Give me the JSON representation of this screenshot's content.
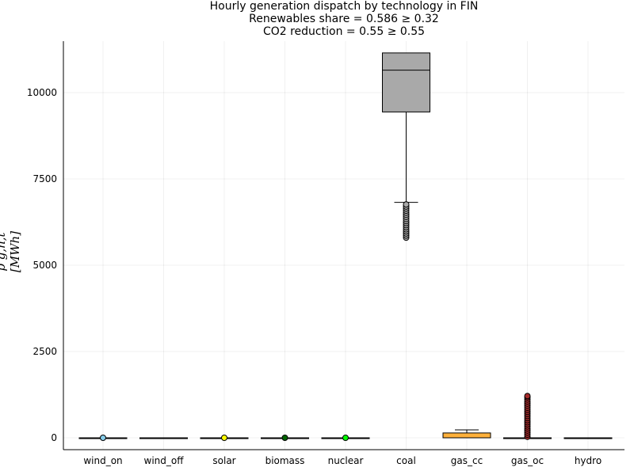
{
  "chart_data": {
    "type": "box",
    "title": "Hourly generation dispatch by technology in FIN",
    "subtitle_lines": [
      "Renewables share = 0.586 ≥ 0.32",
      "CO2 reduction = 0.55 ≥ 0.55"
    ],
    "ylabel": "p_{g,n,t} [MWh]",
    "ylabel_display": "p g,n,t [MWh]",
    "xlabel": "",
    "ylim": [
      -320,
      11400
    ],
    "yticks": [
      0,
      2500,
      5000,
      7500,
      10000
    ],
    "categories": [
      "wind_on",
      "wind_off",
      "solar",
      "biomass",
      "nuclear",
      "coal",
      "gas_cc",
      "gas_oc",
      "hydro"
    ],
    "grid": true,
    "legend": "none",
    "series": [
      {
        "category": "wind_on",
        "color": "#87ceeb",
        "min": 0,
        "q1": 0,
        "median": 0,
        "q3": 0,
        "max": 0,
        "outliers": [
          0
        ]
      },
      {
        "category": "wind_off",
        "color": "#4169e1",
        "min": 0,
        "q1": 0,
        "median": 0,
        "q3": 0,
        "max": 0,
        "outliers": []
      },
      {
        "category": "solar",
        "color": "#ffff00",
        "min": 0,
        "q1": 0,
        "median": 0,
        "q3": 0,
        "max": 0,
        "outliers": [
          0
        ]
      },
      {
        "category": "biomass",
        "color": "#006400",
        "min": 0,
        "q1": 0,
        "median": 0,
        "q3": 0,
        "max": 0,
        "outliers": [
          0
        ]
      },
      {
        "category": "nuclear",
        "color": "#00ff00",
        "min": 0,
        "q1": 0,
        "median": 0,
        "q3": 0,
        "max": 0,
        "outliers": [
          0
        ]
      },
      {
        "category": "coal",
        "color": "#a9a9a9",
        "min": 6820,
        "q1": 9440,
        "median": 10650,
        "q3": 11150,
        "max": 11150,
        "outliers": [
          5800,
          5860,
          5920,
          5980,
          6040,
          6100,
          6160,
          6220,
          6280,
          6340,
          6400,
          6460,
          6520,
          6580,
          6640,
          6700,
          6760
        ]
      },
      {
        "category": "gas_cc",
        "color": "#ffb13b",
        "min": 0,
        "q1": 0,
        "median": 0,
        "q3": 140,
        "max": 230,
        "outliers": []
      },
      {
        "category": "gas_oc",
        "color": "#a52a2a",
        "min": 0,
        "q1": 0,
        "median": 0,
        "q3": 0,
        "max": 0,
        "outliers": [
          30,
          90,
          150,
          210,
          270,
          330,
          390,
          450,
          510,
          570,
          630,
          690,
          750,
          810,
          870,
          930,
          990,
          1050,
          1110,
          1170,
          1210
        ]
      },
      {
        "category": "hydro",
        "color": "#0000ff",
        "min": 0,
        "q1": 0,
        "median": 0,
        "q3": 0,
        "max": 0,
        "outliers": []
      }
    ]
  }
}
